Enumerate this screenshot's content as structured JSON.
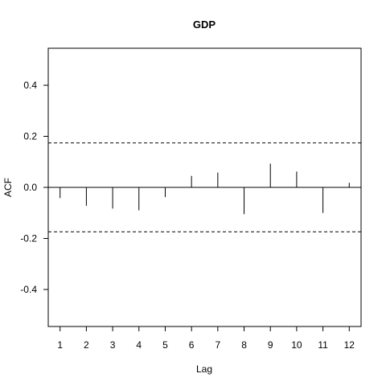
{
  "chart_data": {
    "type": "bar",
    "title": "GDP",
    "xlabel": "Lag",
    "ylabel": "ACF",
    "x": [
      1,
      2,
      3,
      4,
      5,
      6,
      7,
      8,
      9,
      10,
      11,
      12
    ],
    "values": [
      -0.042,
      -0.072,
      -0.083,
      -0.09,
      -0.038,
      0.045,
      0.058,
      -0.105,
      0.093,
      0.062,
      -0.1,
      0.018
    ],
    "confidence_bound": 0.174,
    "xlim": [
      0.55,
      12.45
    ],
    "ylim": [
      -0.545,
      0.545
    ],
    "yticks": [
      -0.4,
      -0.2,
      0.0,
      0.2,
      0.4
    ],
    "ytick_labels": [
      "-0.4",
      "-0.2",
      "0.0",
      "0.2",
      "0.4"
    ],
    "xticks": [
      1,
      2,
      3,
      4,
      5,
      6,
      7,
      8,
      9,
      10,
      11,
      12
    ],
    "xtick_labels": [
      "1",
      "2",
      "3",
      "4",
      "5",
      "6",
      "7",
      "8",
      "9",
      "10",
      "11",
      "12"
    ],
    "grid": false,
    "legend": "none",
    "colors": {
      "bars": "#000000",
      "bounds": "#000000",
      "zero_line": "#000000"
    }
  }
}
